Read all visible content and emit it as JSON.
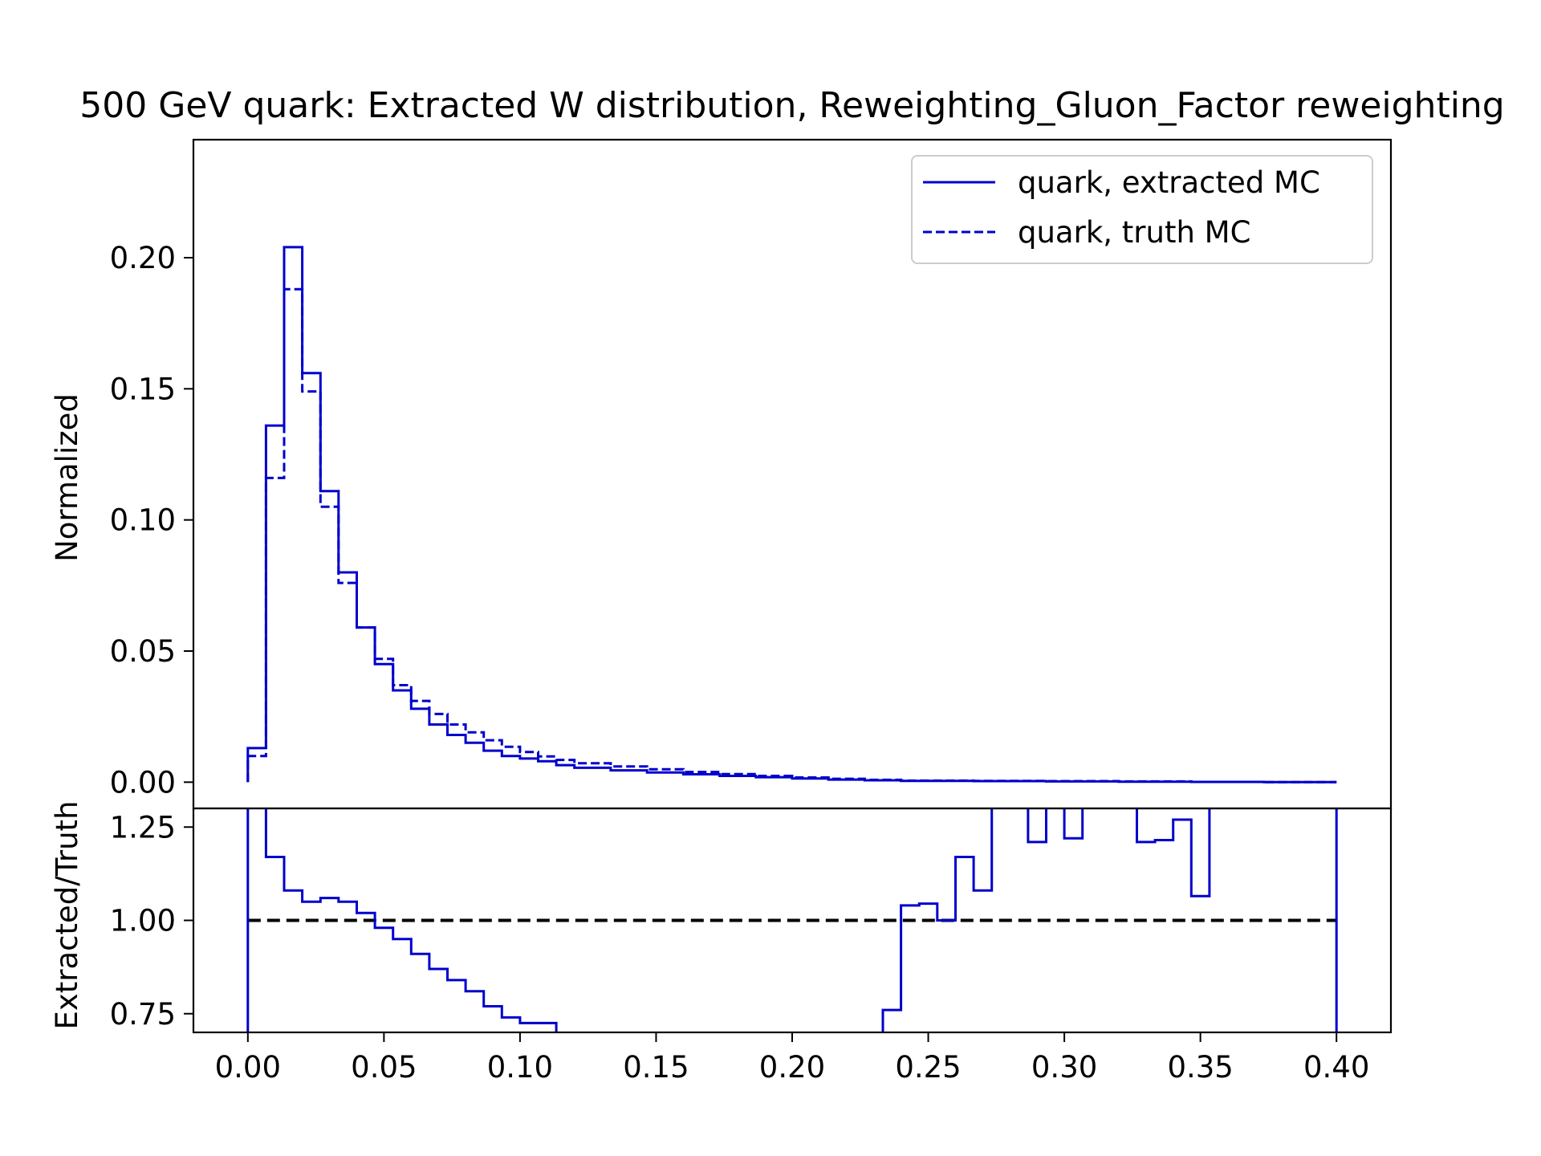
{
  "title": "500 GeV quark: Extracted W distribution, Reweighting_Gluon_Factor reweighting",
  "chart_data": [
    {
      "type": "line",
      "panel": "main",
      "ylabel": "Normalized",
      "xlim": [
        -0.02,
        0.42
      ],
      "ylim": [
        -0.01,
        0.245
      ],
      "yticks": [
        "0.00",
        "0.05",
        "0.10",
        "0.15",
        "0.20"
      ],
      "grid": false,
      "legend_position": "upper right",
      "bin_edges": [
        0.0,
        0.00667,
        0.01333,
        0.02,
        0.02667,
        0.03333,
        0.04,
        0.04667,
        0.05333,
        0.06,
        0.06667,
        0.07333,
        0.08,
        0.08667,
        0.09333,
        0.1,
        0.10667,
        0.11333,
        0.12,
        0.13333,
        0.14667,
        0.16,
        0.17333,
        0.18667,
        0.2,
        0.21333,
        0.22667,
        0.24,
        0.26667,
        0.29333,
        0.32,
        0.34667,
        0.37333,
        0.4
      ],
      "series": [
        {
          "name": "quark, extracted MC",
          "style": "solid",
          "color": "#0000cc",
          "values": [
            0.013,
            0.136,
            0.204,
            0.156,
            0.111,
            0.08,
            0.059,
            0.045,
            0.035,
            0.028,
            0.022,
            0.018,
            0.015,
            0.012,
            0.01,
            0.009,
            0.008,
            0.0065,
            0.0055,
            0.0045,
            0.0037,
            0.003,
            0.0024,
            0.0019,
            0.0014,
            0.001,
            0.0007,
            0.0005,
            0.0004,
            0.0003,
            0.0002,
            0.0001,
            0.0
          ]
        },
        {
          "name": "quark, truth MC",
          "style": "dashed",
          "color": "#0000cc",
          "values": [
            0.01,
            0.116,
            0.188,
            0.149,
            0.105,
            0.076,
            0.059,
            0.047,
            0.037,
            0.031,
            0.026,
            0.022,
            0.019,
            0.016,
            0.0135,
            0.0115,
            0.0098,
            0.0085,
            0.0072,
            0.006,
            0.0049,
            0.0039,
            0.0031,
            0.0024,
            0.0018,
            0.0013,
            0.0009,
            0.0006,
            0.0005,
            0.0004,
            0.0003,
            0.0001,
            0.0
          ]
        }
      ]
    },
    {
      "type": "line",
      "panel": "ratio",
      "ylabel": "Extracted/Truth",
      "xlim": [
        -0.02,
        0.42
      ],
      "ylim": [
        0.7,
        1.3
      ],
      "xticks": [
        "0.00",
        "0.05",
        "0.10",
        "0.15",
        "0.20",
        "0.25",
        "0.30",
        "0.35",
        "0.40"
      ],
      "yticks": [
        "0.75",
        "1.00",
        "1.25"
      ],
      "reference_line": 1.0,
      "bin_edges": [
        0.0,
        0.00667,
        0.01333,
        0.02,
        0.02667,
        0.03333,
        0.04,
        0.04667,
        0.05333,
        0.06,
        0.06667,
        0.07333,
        0.08,
        0.08667,
        0.09333,
        0.1,
        0.10667,
        0.11333,
        0.23333,
        0.24,
        0.24667,
        0.25333,
        0.26,
        0.26667,
        0.27333,
        0.28667,
        0.29333,
        0.3,
        0.30667,
        0.32667,
        0.33333,
        0.34,
        0.34667,
        0.35333,
        0.4
      ],
      "series": [
        {
          "name": "ratio",
          "color": "#0000cc",
          "values": [
            1.4,
            1.17,
            1.08,
            1.05,
            1.06,
            1.05,
            1.02,
            0.98,
            0.95,
            0.91,
            0.87,
            0.84,
            0.81,
            0.77,
            0.74,
            0.725,
            0.725,
            0.5,
            0.76,
            1.04,
            1.045,
            1.0,
            1.17,
            1.08,
            1.4,
            1.21,
            1.4,
            1.22,
            1.4,
            1.21,
            1.215,
            1.27,
            1.065,
            1.4
          ]
        }
      ]
    }
  ]
}
